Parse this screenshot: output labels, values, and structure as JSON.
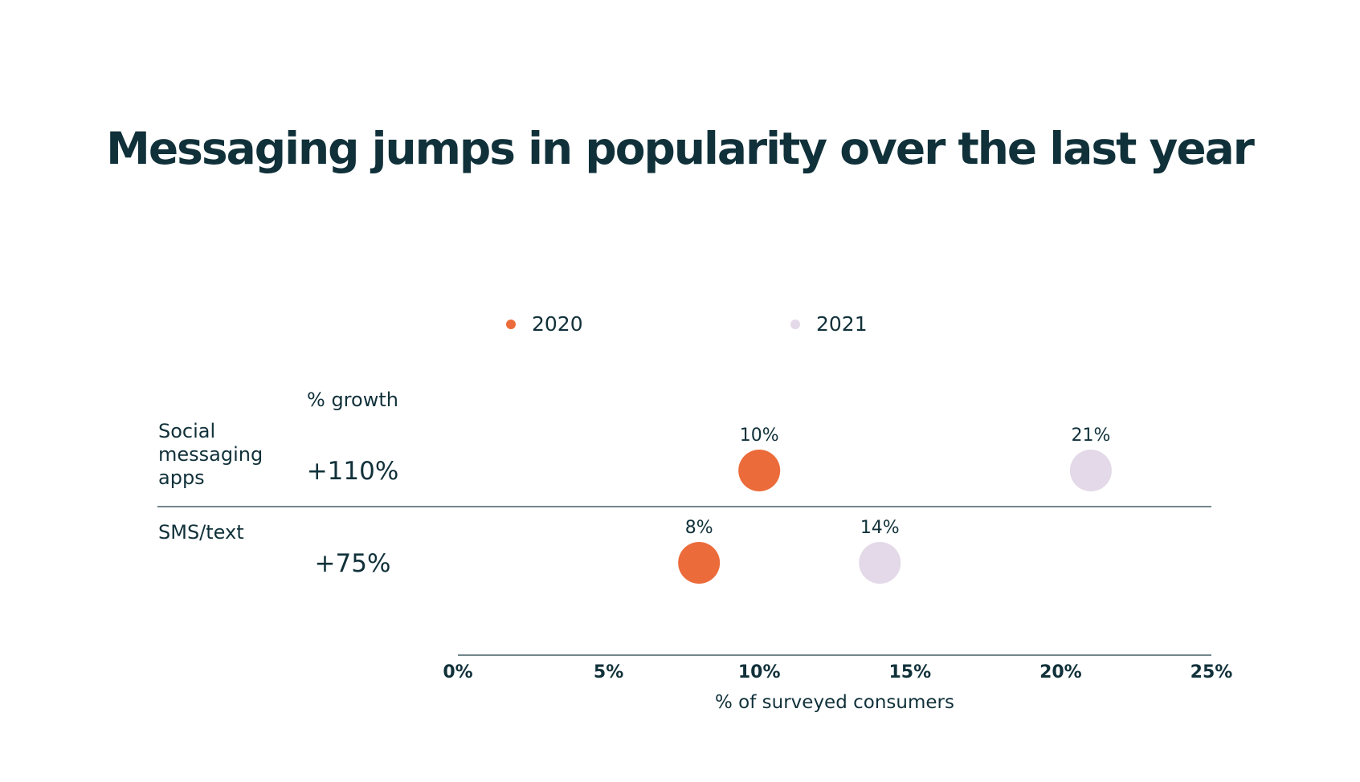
{
  "chart_data": {
    "type": "scatter",
    "title": "Messaging jumps in popularity over the last year",
    "xlabel": "% of surveyed consumers",
    "xlim": [
      0,
      25
    ],
    "x_ticks": [
      0,
      5,
      10,
      15,
      20,
      25
    ],
    "x_tick_labels": [
      "0%",
      "5%",
      "10%",
      "15%",
      "20%",
      "25%"
    ],
    "growth_header": "% growth",
    "legend_position": "top",
    "categories": [
      {
        "lines": [
          "Social",
          "messaging",
          "apps"
        ],
        "growth": "+110%"
      },
      {
        "lines": [
          "SMS/text"
        ],
        "growth": "+75%"
      }
    ],
    "series": [
      {
        "name": "2020",
        "color": "#ec6b3a",
        "values": [
          10,
          8
        ],
        "labels": [
          "10%",
          "8%"
        ]
      },
      {
        "name": "2021",
        "color": "#e3d9e8",
        "values": [
          21,
          14
        ],
        "labels": [
          "21%",
          "14%"
        ]
      }
    ],
    "colors": {
      "text": "#11313a",
      "axis": "#1f3d44"
    }
  }
}
